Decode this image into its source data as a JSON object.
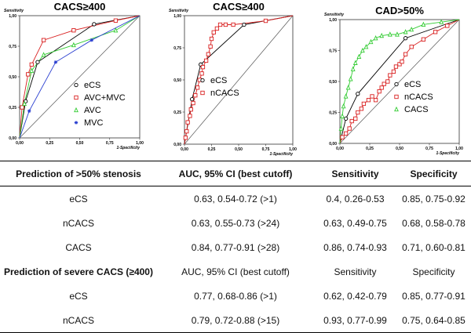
{
  "chart_data": [
    {
      "type": "line",
      "title": "CACS≥400",
      "xlabel": "1-Specificity",
      "ylabel": "Sensitivity",
      "xlim": [
        0,
        1
      ],
      "ylim": [
        0,
        1
      ],
      "xticks": [
        "0,00",
        "0,25",
        "0,50",
        "0,75",
        "1,00"
      ],
      "yticks": [
        "0,00",
        "0,25",
        "0,50",
        "0,75",
        "1,00"
      ],
      "legend_position": "lower-right",
      "series": [
        {
          "name": "eCS",
          "color": "#000000",
          "marker": "circle",
          "x": [
            0,
            0.05,
            0.15,
            0.62,
            1
          ],
          "y": [
            0,
            0.3,
            0.62,
            0.93,
            1
          ]
        },
        {
          "name": "AVC+MVC",
          "color": "#d92020",
          "marker": "square",
          "x": [
            0,
            0.02,
            0.07,
            0.1,
            0.2,
            0.45,
            0.8,
            1
          ],
          "y": [
            0,
            0.25,
            0.52,
            0.6,
            0.8,
            0.88,
            0.96,
            1
          ]
        },
        {
          "name": "AVC",
          "color": "#33cc33",
          "marker": "triangle",
          "x": [
            0,
            0.04,
            0.1,
            0.2,
            0.45,
            0.8,
            1
          ],
          "y": [
            0,
            0.28,
            0.55,
            0.68,
            0.76,
            0.88,
            1
          ]
        },
        {
          "name": "MVC",
          "color": "#2a3fd0",
          "marker": "star",
          "x": [
            0,
            0.08,
            0.3,
            0.6,
            1
          ],
          "y": [
            0,
            0.22,
            0.62,
            0.8,
            1
          ]
        }
      ]
    },
    {
      "type": "line",
      "title": "CACS≥400",
      "xlabel": "1-Specificity",
      "ylabel": "Sensitivity",
      "xlim": [
        0,
        1
      ],
      "ylim": [
        0,
        1
      ],
      "xticks": [
        "0,00",
        "0,25",
        "0,50",
        "0,75",
        "1,00"
      ],
      "yticks": [
        "0,00",
        "0,25",
        "0,50",
        "0,75",
        "1,00"
      ],
      "legend_position": "right",
      "series": [
        {
          "name": "eCS",
          "color": "#000000",
          "marker": "circle",
          "x": [
            0,
            0.07,
            0.15,
            0.55,
            1
          ],
          "y": [
            0,
            0.35,
            0.62,
            0.93,
            1
          ]
        },
        {
          "name": "nCACS",
          "color": "#d92020",
          "marker": "square",
          "x": [
            0,
            0.01,
            0.02,
            0.03,
            0.05,
            0.06,
            0.08,
            0.1,
            0.12,
            0.14,
            0.16,
            0.17,
            0.2,
            0.22,
            0.24,
            0.25,
            0.27,
            0.3,
            0.33,
            0.38,
            0.45,
            0.75,
            1
          ],
          "y": [
            0,
            0.05,
            0.1,
            0.17,
            0.22,
            0.27,
            0.32,
            0.38,
            0.44,
            0.5,
            0.55,
            0.6,
            0.65,
            0.7,
            0.76,
            0.82,
            0.87,
            0.9,
            0.93,
            0.93,
            0.93,
            0.96,
            1
          ]
        }
      ]
    },
    {
      "type": "line",
      "title": "CAD>50%",
      "xlabel": "1-Specificity",
      "ylabel": "Sensitivity",
      "xlim": [
        0,
        1
      ],
      "ylim": [
        0,
        1
      ],
      "xticks": [
        "0,00",
        "0,25",
        "0,50",
        "0,75",
        "1,00"
      ],
      "yticks": [
        "0,00",
        "0,25",
        "0,50",
        "0,75",
        "1,00"
      ],
      "legend_position": "lower-right",
      "series": [
        {
          "name": "eCS",
          "color": "#000000",
          "marker": "circle",
          "x": [
            0,
            0.05,
            0.15,
            0.55,
            1
          ],
          "y": [
            0,
            0.2,
            0.4,
            0.85,
            1
          ]
        },
        {
          "name": "nCACS",
          "color": "#d92020",
          "marker": "square",
          "x": [
            0,
            0.02,
            0.05,
            0.08,
            0.1,
            0.13,
            0.15,
            0.18,
            0.2,
            0.24,
            0.27,
            0.3,
            0.33,
            0.35,
            0.37,
            0.4,
            0.42,
            0.45,
            0.47,
            0.5,
            0.52,
            0.55,
            0.6,
            0.7,
            0.8,
            0.9,
            1
          ],
          "y": [
            0,
            0.05,
            0.08,
            0.12,
            0.18,
            0.2,
            0.25,
            0.28,
            0.32,
            0.35,
            0.38,
            0.35,
            0.42,
            0.45,
            0.48,
            0.5,
            0.55,
            0.58,
            0.62,
            0.64,
            0.66,
            0.72,
            0.78,
            0.84,
            0.9,
            0.95,
            1
          ]
        },
        {
          "name": "CACS",
          "color": "#33cc33",
          "marker": "triangle",
          "x": [
            0,
            0.01,
            0.02,
            0.03,
            0.05,
            0.07,
            0.09,
            0.11,
            0.13,
            0.16,
            0.19,
            0.22,
            0.26,
            0.3,
            0.35,
            0.42,
            0.48,
            0.55,
            0.6,
            0.7,
            0.85,
            1
          ],
          "y": [
            0,
            0.12,
            0.22,
            0.3,
            0.38,
            0.45,
            0.52,
            0.6,
            0.65,
            0.7,
            0.75,
            0.78,
            0.82,
            0.85,
            0.87,
            0.88,
            0.88,
            0.9,
            0.92,
            0.96,
            0.98,
            1
          ]
        }
      ]
    }
  ],
  "table": {
    "section1": {
      "title": "Prediction of >50% stenosis",
      "auc_header": "AUC, 95% CI (best cutoff)",
      "sens_header": "Sensitivity",
      "spec_header": "Specificity"
    },
    "rows1": [
      {
        "name": "eCS",
        "auc": "0.63, 0.54-0.72 (>1)",
        "sens": "0.4, 0.26-0.53",
        "spec": "0.85, 0.75-0.92"
      },
      {
        "name": "nCACS",
        "auc": "0.63, 0.55-0.73 (>24)",
        "sens": "0.63, 0.49-0.75",
        "spec": "0.68, 0.58-0.78"
      },
      {
        "name": "CACS",
        "auc": "0.84, 0.77-0.91 (>28)",
        "sens": "0.86, 0.74-0.93",
        "spec": "0.71, 0.60-0.81"
      }
    ],
    "section2": {
      "title": "Prediction of severe CACS (≥400)",
      "auc_header": "AUC, 95% CI (best cutoff)",
      "sens_header": "Sensitivity",
      "spec_header": "Specificity"
    },
    "rows2": [
      {
        "name": "eCS",
        "auc": "0.77, 0.68-0.86 (>1)",
        "sens": "0.62, 0.42-0.79",
        "spec": "0.85, 0.77-0.91"
      },
      {
        "name": "nCACS",
        "auc": "0.79, 0.72-0.88 (>15)",
        "sens": "0.93, 0.77-0.99",
        "spec": "0.75, 0.64-0.85"
      }
    ]
  }
}
